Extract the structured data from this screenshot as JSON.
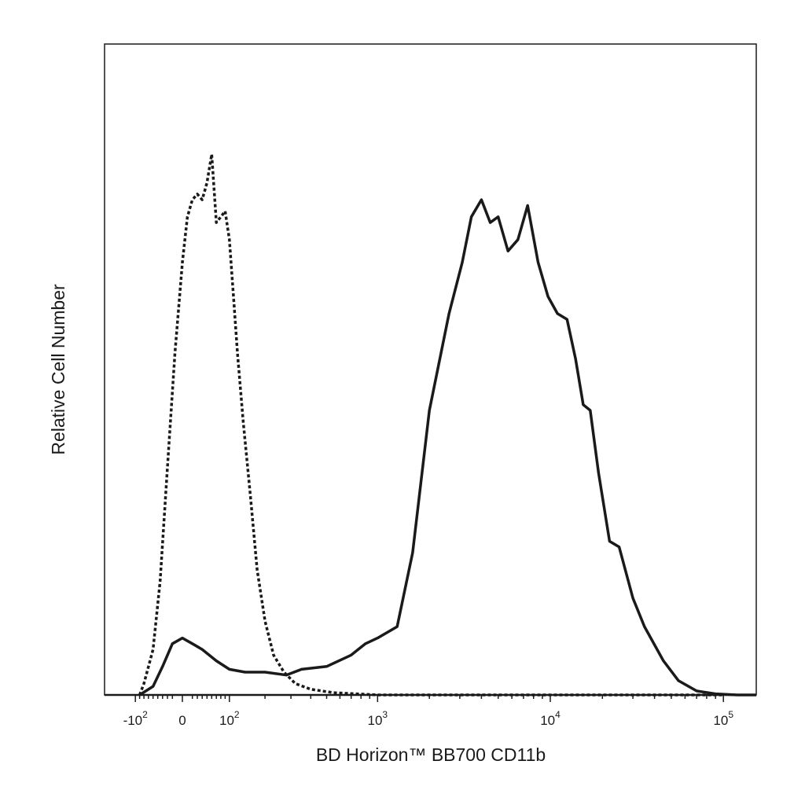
{
  "chart_data": {
    "type": "line",
    "title": "",
    "xlabel": "BD Horizon™ BB700 CD11b",
    "ylabel": "Relative Cell Number",
    "x_scale": "biexponential",
    "xlim": [
      -200,
      200000
    ],
    "ylim": [
      0,
      1.0
    ],
    "grid": false,
    "legend": "none",
    "x_ticks": [
      {
        "value": -100,
        "base": "-10",
        "exp": "2"
      },
      {
        "value": 0,
        "base": "0",
        "exp": ""
      },
      {
        "value": 100,
        "base": "10",
        "exp": "2"
      },
      {
        "value": 1000,
        "base": "10",
        "exp": "3"
      },
      {
        "value": 10000,
        "base": "10",
        "exp": "4"
      },
      {
        "value": 100000,
        "base": "10",
        "exp": "5"
      }
    ],
    "series": [
      {
        "style": "dotted",
        "color": "#1a1a1a",
        "points": [
          [
            -90,
            0.0
          ],
          [
            -80,
            0.02
          ],
          [
            -60,
            0.08
          ],
          [
            -45,
            0.2
          ],
          [
            -30,
            0.4
          ],
          [
            -15,
            0.6
          ],
          [
            0,
            0.76
          ],
          [
            10,
            0.84
          ],
          [
            20,
            0.87
          ],
          [
            30,
            0.88
          ],
          [
            40,
            0.87
          ],
          [
            50,
            0.9
          ],
          [
            60,
            0.95
          ],
          [
            70,
            0.83
          ],
          [
            80,
            0.84
          ],
          [
            90,
            0.85
          ],
          [
            100,
            0.8
          ],
          [
            110,
            0.7
          ],
          [
            120,
            0.6
          ],
          [
            135,
            0.48
          ],
          [
            155,
            0.35
          ],
          [
            175,
            0.22
          ],
          [
            200,
            0.13
          ],
          [
            230,
            0.07
          ],
          [
            270,
            0.04
          ],
          [
            320,
            0.02
          ],
          [
            400,
            0.01
          ],
          [
            550,
            0.004
          ],
          [
            1000,
            0.0
          ],
          [
            100000,
            0.0
          ]
        ]
      },
      {
        "style": "solid",
        "color": "#1a1a1a",
        "points": [
          [
            -90,
            0.0
          ],
          [
            -60,
            0.015
          ],
          [
            -40,
            0.05
          ],
          [
            -20,
            0.09
          ],
          [
            0,
            0.1
          ],
          [
            20,
            0.09
          ],
          [
            40,
            0.08
          ],
          [
            70,
            0.06
          ],
          [
            100,
            0.045
          ],
          [
            140,
            0.04
          ],
          [
            200,
            0.04
          ],
          [
            280,
            0.035
          ],
          [
            350,
            0.045
          ],
          [
            500,
            0.05
          ],
          [
            700,
            0.07
          ],
          [
            850,
            0.09
          ],
          [
            1000,
            0.1
          ],
          [
            1300,
            0.12
          ],
          [
            1600,
            0.25
          ],
          [
            2000,
            0.5
          ],
          [
            2600,
            0.67
          ],
          [
            3100,
            0.76
          ],
          [
            3500,
            0.84
          ],
          [
            4000,
            0.87
          ],
          [
            4500,
            0.83
          ],
          [
            5000,
            0.84
          ],
          [
            5700,
            0.78
          ],
          [
            6500,
            0.8
          ],
          [
            7400,
            0.86
          ],
          [
            8500,
            0.76
          ],
          [
            9700,
            0.7
          ],
          [
            11000,
            0.67
          ],
          [
            12500,
            0.66
          ],
          [
            14000,
            0.59
          ],
          [
            15500,
            0.51
          ],
          [
            17000,
            0.5
          ],
          [
            19000,
            0.39
          ],
          [
            22000,
            0.27
          ],
          [
            25000,
            0.26
          ],
          [
            30000,
            0.17
          ],
          [
            35000,
            0.12
          ],
          [
            45000,
            0.06
          ],
          [
            55000,
            0.025
          ],
          [
            70000,
            0.007
          ],
          [
            90000,
            0.002
          ],
          [
            120000,
            0.0
          ],
          [
            200000,
            0.0
          ]
        ]
      }
    ]
  }
}
